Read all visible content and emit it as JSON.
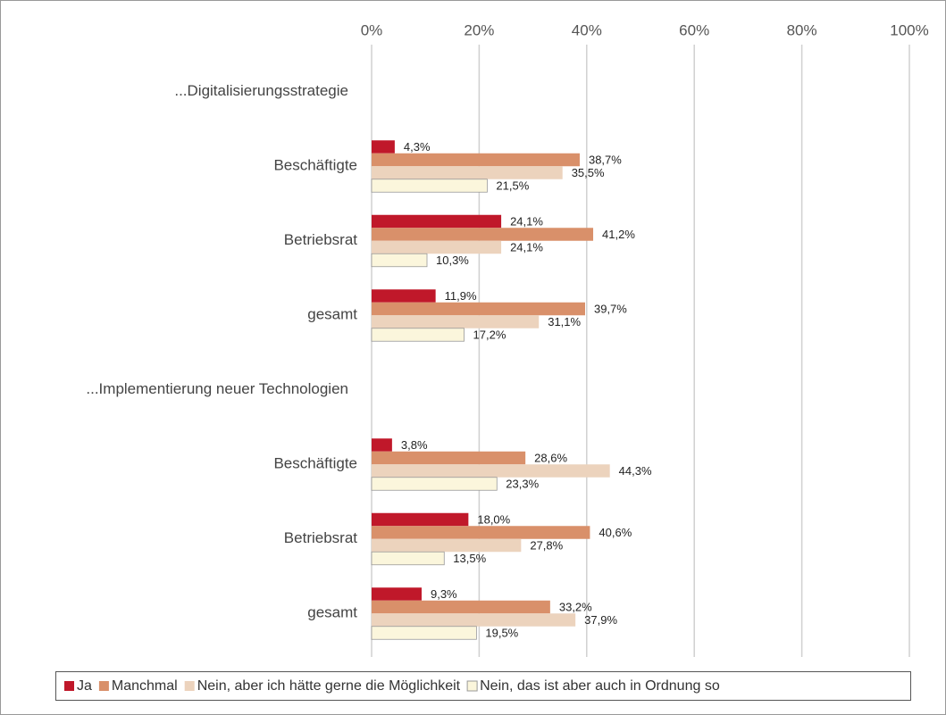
{
  "chart_data": {
    "type": "bar",
    "orientation": "horizontal",
    "categories": [
      "...Digitalisierungsstrategie",
      "Beschäftigte",
      "Betriebsrat",
      "gesamt",
      "...Implementierung neuer Technologien",
      "Beschäftigte",
      "Betriebsrat",
      "gesamt"
    ],
    "series": [
      {
        "name": "Ja",
        "color": "#c0182a",
        "values": [
          null,
          4.3,
          24.1,
          11.9,
          null,
          3.8,
          18.0,
          9.3
        ],
        "value_labels": [
          null,
          "4,3%",
          "24,1%",
          "11,9%",
          null,
          "3,8%",
          "18,0%",
          "9,3%"
        ]
      },
      {
        "name": "Manchmal",
        "color": "#d9906a",
        "values": [
          null,
          38.7,
          41.2,
          39.7,
          null,
          28.6,
          40.6,
          33.2
        ],
        "value_labels": [
          null,
          "38,7%",
          "41,2%",
          "39,7%",
          null,
          "28,6%",
          "40,6%",
          "33,2%"
        ]
      },
      {
        "name": "Nein, aber ich hätte gerne die Möglichkeit",
        "color": "#ecd3bd",
        "values": [
          null,
          35.5,
          24.1,
          31.1,
          null,
          44.3,
          27.8,
          37.9
        ],
        "value_labels": [
          null,
          "35,5%",
          "24,1%",
          "31,1%",
          null,
          "44,3%",
          "27,8%",
          "37,9%"
        ]
      },
      {
        "name": "Nein, das ist aber auch in Ordnung so",
        "color": "#fbf6dc",
        "values": [
          null,
          21.5,
          10.3,
          17.2,
          null,
          23.3,
          13.5,
          19.5
        ],
        "value_labels": [
          null,
          "21,5%",
          "10,3%",
          "17,2%",
          null,
          "23,3%",
          "13,5%",
          "19,5%"
        ]
      }
    ],
    "xlim": [
      0,
      100
    ],
    "xticks": [
      {
        "value": 0,
        "label": "0%"
      },
      {
        "value": 20,
        "label": "20%"
      },
      {
        "value": 40,
        "label": "40%"
      },
      {
        "value": 60,
        "label": "60%"
      },
      {
        "value": 80,
        "label": "80%"
      },
      {
        "value": 100,
        "label": "100%"
      }
    ],
    "grid": true,
    "legend": "bottom"
  }
}
